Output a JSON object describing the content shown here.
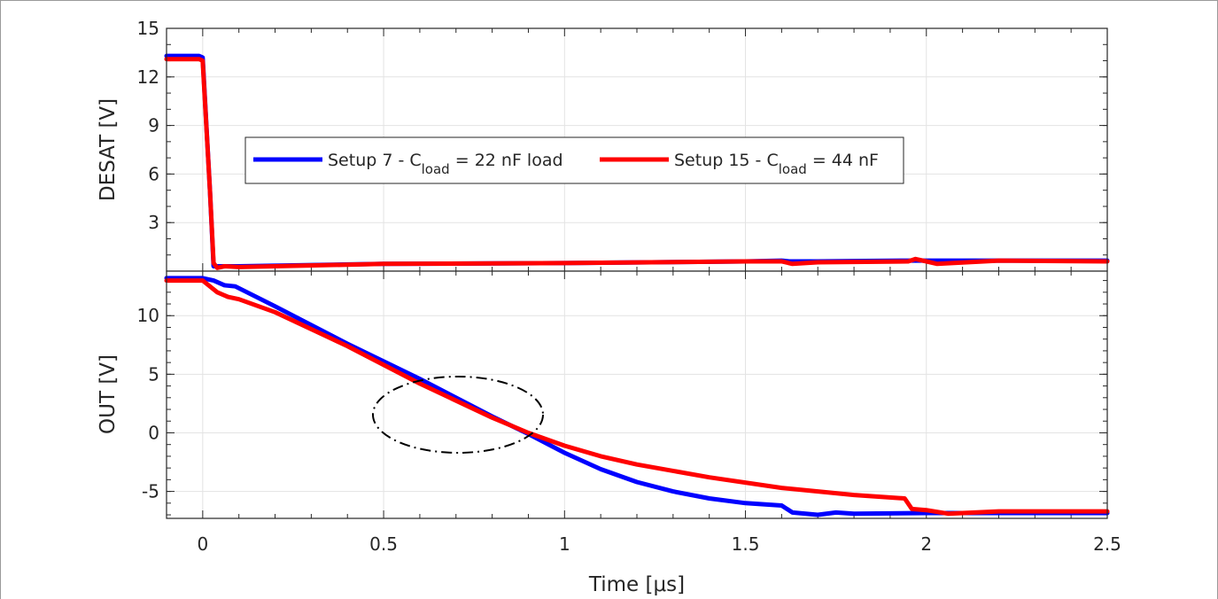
{
  "chart_data": [
    {
      "type": "line",
      "ylabel": "DESAT [V]",
      "xlim": [
        -0.1,
        2.5
      ],
      "ylim": [
        0,
        15
      ],
      "yticks": [
        "3",
        "6",
        "9",
        "12",
        "15"
      ],
      "grid": true,
      "legend_position": "inside, center-left",
      "series": [
        {
          "name": "Setup 7 - C_load = 22 nF load",
          "color": "#0000ff",
          "x": [
            -0.1,
            -0.01,
            0.0,
            0.02,
            0.03,
            0.05,
            0.1,
            0.5,
            1.0,
            1.5,
            1.6,
            1.62,
            1.7,
            1.95,
            2.0,
            2.05,
            2.2,
            2.5
          ],
          "y": [
            13.3,
            13.3,
            13.2,
            5.0,
            0.3,
            0.3,
            0.3,
            0.45,
            0.5,
            0.6,
            0.65,
            0.6,
            0.6,
            0.65,
            0.65,
            0.65,
            0.65,
            0.65
          ]
        },
        {
          "name": "Setup 15 - C_load = 44 nF",
          "color": "#ff0000",
          "x": [
            -0.1,
            -0.01,
            0.0,
            0.02,
            0.03,
            0.04,
            0.06,
            0.1,
            0.5,
            1.0,
            1.5,
            1.6,
            1.63,
            1.7,
            1.95,
            1.97,
            2.0,
            2.03,
            2.2,
            2.5
          ],
          "y": [
            13.1,
            13.1,
            13.0,
            5.0,
            0.5,
            0.2,
            0.3,
            0.25,
            0.45,
            0.5,
            0.6,
            0.6,
            0.45,
            0.55,
            0.6,
            0.75,
            0.6,
            0.45,
            0.65,
            0.6
          ]
        }
      ]
    },
    {
      "type": "line",
      "xlabel": "Time [μs]",
      "ylabel": "OUT [V]",
      "xlim": [
        -0.1,
        2.5
      ],
      "ylim": [
        -7.3,
        13.8
      ],
      "xticks": [
        "0",
        "0.5",
        "1",
        "1.5",
        "2",
        "2.5"
      ],
      "yticks": [
        "-5",
        "0",
        "5",
        "10"
      ],
      "grid": true,
      "annotation": "dash-dot ellipse around the crossing of the two curves",
      "series": [
        {
          "name": "Setup 7 - C_load = 22 nF load",
          "color": "#0000ff",
          "x": [
            -0.1,
            -0.01,
            0.0,
            0.03,
            0.06,
            0.09,
            0.2,
            0.4,
            0.6,
            0.8,
            0.9,
            1.0,
            1.1,
            1.2,
            1.3,
            1.4,
            1.5,
            1.6,
            1.63,
            1.7,
            1.75,
            1.8,
            2.0,
            2.2,
            2.5
          ],
          "y": [
            13.2,
            13.2,
            13.2,
            13.0,
            12.6,
            12.5,
            10.8,
            7.6,
            4.6,
            1.4,
            -0.1,
            -1.7,
            -3.1,
            -4.2,
            -5.0,
            -5.6,
            -6.0,
            -6.2,
            -6.8,
            -7.0,
            -6.8,
            -6.9,
            -6.85,
            -6.85,
            -6.85
          ]
        },
        {
          "name": "Setup 15 - C_load = 44 nF",
          "color": "#ff0000",
          "x": [
            -0.1,
            -0.01,
            0.0,
            0.04,
            0.07,
            0.1,
            0.2,
            0.4,
            0.6,
            0.8,
            0.9,
            1.0,
            1.1,
            1.2,
            1.4,
            1.6,
            1.8,
            1.94,
            1.96,
            2.0,
            2.06,
            2.2,
            2.5
          ],
          "y": [
            13.0,
            13.0,
            13.0,
            12.0,
            11.6,
            11.4,
            10.3,
            7.4,
            4.2,
            1.3,
            0.0,
            -1.1,
            -2.0,
            -2.7,
            -3.8,
            -4.7,
            -5.3,
            -5.6,
            -6.5,
            -6.6,
            -6.9,
            -6.7,
            -6.7
          ]
        }
      ]
    }
  ],
  "legend": {
    "entries": [
      {
        "pre": "Setup 7 - C",
        "sub": "load",
        "post": " = 22 nF load",
        "color": "#0000ff"
      },
      {
        "pre": "Setup 15 - C",
        "sub": "load",
        "post": " = 44 nF",
        "color": "#ff0000"
      }
    ]
  }
}
